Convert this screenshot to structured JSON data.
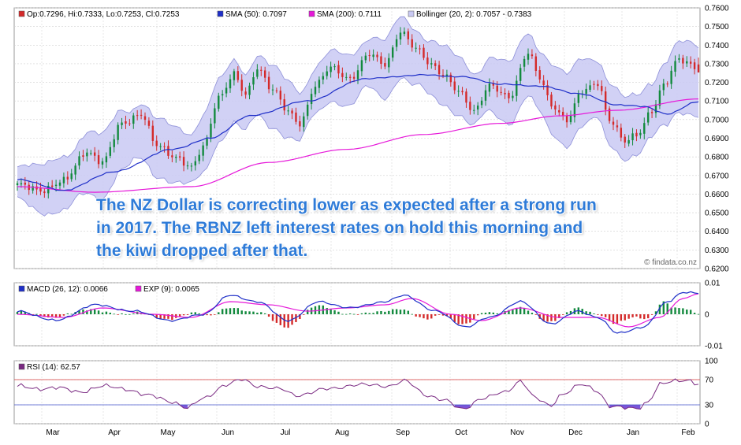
{
  "colors": {
    "up_candle": "#138a3e",
    "down_candle": "#d42a2a",
    "sma50": "#1f2fc8",
    "sma200": "#e619d9",
    "bollinger_fill": "#c9c9f3",
    "bollinger_edge": "#8d8fd8",
    "macd_line": "#1f2fc8",
    "exp_line": "#e619d9",
    "hist_pos": "#138a3e",
    "hist_neg": "#d42a2a",
    "rsi_line": "#7a2a82",
    "rsi_extreme_fill": "#7a55d8",
    "ref_line": "#d43a3a",
    "text_overlay": "#2e7bd8"
  },
  "commentary": {
    "line1": "The NZ Dollar is correcting lower as expected after a strong run",
    "line2": "in 2017. The RBNZ left interest rates on hold this morning and",
    "line3": "the kiwi dropped after that."
  },
  "watermark": "© findata.co.nz",
  "chart_data": [
    {
      "type": "candlestick",
      "title": "",
      "legend": [
        {
          "key": "ohlc",
          "label": "Op:0.7296, Hi:0.7333, Lo:0.7253, Cl:0.7253"
        },
        {
          "key": "sma50",
          "label": "SMA (50): 0.7097"
        },
        {
          "key": "sma200",
          "label": "SMA (200): 0.7111"
        },
        {
          "key": "bollinger",
          "label": "Bollinger (20, 2): 0.7057 - 0.7383"
        }
      ],
      "legend_position": "top-left",
      "grid": true,
      "x_tick_labels": [
        "Mar",
        "Apr",
        "May",
        "Jun",
        "Jul",
        "Aug",
        "Sep",
        "Oct",
        "Nov",
        "Dec",
        "Jan",
        "Feb"
      ],
      "ylim": [
        0.62,
        0.76
      ],
      "y_ticks": [
        "0.6200",
        "0.6300",
        "0.6400",
        "0.6500",
        "0.6600",
        "0.6700",
        "0.6800",
        "0.6900",
        "0.7000",
        "0.7100",
        "0.7200",
        "0.7300",
        "0.7400",
        "0.7500",
        "0.7600"
      ],
      "close_anchors": [
        [
          0,
          0.665
        ],
        [
          6,
          0.662
        ],
        [
          12,
          0.667
        ],
        [
          18,
          0.683
        ],
        [
          22,
          0.677
        ],
        [
          27,
          0.698
        ],
        [
          32,
          0.703
        ],
        [
          36,
          0.686
        ],
        [
          41,
          0.68
        ],
        [
          45,
          0.674
        ],
        [
          48,
          0.685
        ],
        [
          52,
          0.712
        ],
        [
          56,
          0.724
        ],
        [
          59,
          0.713
        ],
        [
          62,
          0.728
        ],
        [
          66,
          0.716
        ],
        [
          70,
          0.704
        ],
        [
          73,
          0.698
        ],
        [
          77,
          0.718
        ],
        [
          81,
          0.728
        ],
        [
          86,
          0.722
        ],
        [
          91,
          0.735
        ],
        [
          95,
          0.73
        ],
        [
          99,
          0.747
        ],
        [
          103,
          0.738
        ],
        [
          107,
          0.73
        ],
        [
          110,
          0.724
        ],
        [
          114,
          0.715
        ],
        [
          118,
          0.705
        ],
        [
          122,
          0.718
        ],
        [
          127,
          0.712
        ],
        [
          132,
          0.736
        ],
        [
          135,
          0.722
        ],
        [
          138,
          0.708
        ],
        [
          142,
          0.7
        ],
        [
          146,
          0.715
        ],
        [
          150,
          0.72
        ],
        [
          153,
          0.7
        ],
        [
          157,
          0.688
        ],
        [
          160,
          0.692
        ],
        [
          164,
          0.705
        ],
        [
          167,
          0.718
        ],
        [
          171,
          0.733
        ],
        [
          174,
          0.73
        ],
        [
          176,
          0.7253
        ]
      ],
      "sma50": [
        [
          0,
          0.668
        ],
        [
          12,
          0.662
        ],
        [
          25,
          0.672
        ],
        [
          40,
          0.684
        ],
        [
          50,
          0.69
        ],
        [
          60,
          0.702
        ],
        [
          75,
          0.71
        ],
        [
          90,
          0.722
        ],
        [
          105,
          0.724
        ],
        [
          115,
          0.723
        ],
        [
          125,
          0.719
        ],
        [
          135,
          0.718
        ],
        [
          145,
          0.714
        ],
        [
          155,
          0.708
        ],
        [
          162,
          0.707
        ],
        [
          168,
          0.703
        ],
        [
          176,
          0.7097
        ]
      ],
      "sma200": [
        [
          0,
          0.664
        ],
        [
          20,
          0.661
        ],
        [
          45,
          0.664
        ],
        [
          65,
          0.677
        ],
        [
          85,
          0.684
        ],
        [
          105,
          0.692
        ],
        [
          125,
          0.698
        ],
        [
          140,
          0.702
        ],
        [
          155,
          0.705
        ],
        [
          176,
          0.7111
        ]
      ],
      "bollinger_band_width": [
        [
          0,
          0.008
        ],
        [
          20,
          0.014
        ],
        [
          40,
          0.012
        ],
        [
          60,
          0.014
        ],
        [
          80,
          0.01
        ],
        [
          100,
          0.013
        ],
        [
          120,
          0.012
        ],
        [
          140,
          0.016
        ],
        [
          160,
          0.013
        ],
        [
          176,
          0.016
        ]
      ]
    },
    {
      "type": "line",
      "legend": [
        {
          "key": "macd",
          "label": "MACD (26, 12): 0.0066"
        },
        {
          "key": "exp",
          "label": "EXP (9): 0.0065"
        }
      ],
      "ylim": [
        -0.01,
        0.01
      ],
      "y_ticks": [
        "0.01",
        "0",
        "-0.01"
      ],
      "macd": [
        [
          0,
          0.001
        ],
        [
          10,
          -0.002
        ],
        [
          20,
          0.003
        ],
        [
          30,
          0.001
        ],
        [
          40,
          -0.002
        ],
        [
          48,
          0.0
        ],
        [
          55,
          0.006
        ],
        [
          62,
          0.004
        ],
        [
          70,
          -0.002
        ],
        [
          78,
          0.004
        ],
        [
          86,
          0.002
        ],
        [
          95,
          0.004
        ],
        [
          100,
          0.006
        ],
        [
          108,
          0.001
        ],
        [
          116,
          -0.004
        ],
        [
          122,
          -0.001
        ],
        [
          130,
          0.004
        ],
        [
          138,
          -0.003
        ],
        [
          145,
          0.001
        ],
        [
          150,
          -0.001
        ],
        [
          155,
          -0.006
        ],
        [
          162,
          -0.004
        ],
        [
          168,
          0.004
        ],
        [
          172,
          0.007
        ],
        [
          176,
          0.0066
        ]
      ],
      "exp": [
        [
          0,
          0.0
        ],
        [
          12,
          -0.001
        ],
        [
          22,
          0.002
        ],
        [
          35,
          0.0
        ],
        [
          45,
          -0.001
        ],
        [
          55,
          0.004
        ],
        [
          65,
          0.003
        ],
        [
          75,
          0.001
        ],
        [
          85,
          0.002
        ],
        [
          95,
          0.003
        ],
        [
          102,
          0.005
        ],
        [
          112,
          0.0
        ],
        [
          120,
          -0.002
        ],
        [
          130,
          0.002
        ],
        [
          140,
          -0.001
        ],
        [
          150,
          -0.001
        ],
        [
          158,
          -0.004
        ],
        [
          166,
          -0.001
        ],
        [
          172,
          0.005
        ],
        [
          176,
          0.0065
        ]
      ]
    },
    {
      "type": "line",
      "legend": [
        {
          "key": "rsi",
          "label": "RSI (14): 62.57"
        }
      ],
      "ylim": [
        0,
        100
      ],
      "y_ticks": [
        "100",
        "70",
        "30",
        "0"
      ],
      "reference_lines": [
        70,
        30
      ],
      "rsi": [
        [
          0,
          60
        ],
        [
          5,
          55
        ],
        [
          10,
          58
        ],
        [
          16,
          50
        ],
        [
          22,
          60
        ],
        [
          28,
          55
        ],
        [
          34,
          45
        ],
        [
          40,
          35
        ],
        [
          44,
          25
        ],
        [
          48,
          40
        ],
        [
          54,
          62
        ],
        [
          58,
          70
        ],
        [
          62,
          60
        ],
        [
          68,
          55
        ],
        [
          72,
          45
        ],
        [
          80,
          55
        ],
        [
          88,
          62
        ],
        [
          96,
          60
        ],
        [
          100,
          68
        ],
        [
          106,
          45
        ],
        [
          110,
          38
        ],
        [
          115,
          23
        ],
        [
          120,
          40
        ],
        [
          126,
          50
        ],
        [
          130,
          68
        ],
        [
          134,
          40
        ],
        [
          138,
          28
        ],
        [
          140,
          45
        ],
        [
          146,
          62
        ],
        [
          150,
          52
        ],
        [
          153,
          28
        ],
        [
          157,
          25
        ],
        [
          160,
          24
        ],
        [
          163,
          35
        ],
        [
          166,
          62
        ],
        [
          170,
          68
        ],
        [
          173,
          70
        ],
        [
          176,
          62.57
        ]
      ]
    }
  ]
}
